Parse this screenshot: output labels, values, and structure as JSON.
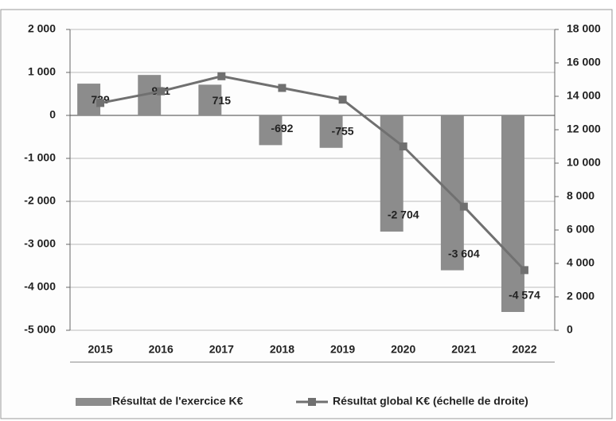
{
  "chart_data": {
    "type": "bar",
    "categories": [
      "2015",
      "2016",
      "2017",
      "2018",
      "2019",
      "2020",
      "2021",
      "2022"
    ],
    "series": [
      {
        "name": "Résultat de l'exercice K€",
        "color": "#8c8c8c",
        "type": "bar",
        "values": [
          739,
          941,
          715,
          -692,
          -755,
          -2704,
          -3604,
          -4574
        ],
        "value_labels": [
          "739",
          "941",
          "715",
          "-692",
          "-755",
          "-2 704",
          "-3 604",
          "-4 574"
        ]
      },
      {
        "name": "Résultat global K€ (échelle de droite)",
        "color": "#707070",
        "type": "line",
        "axis": "y2",
        "values": [
          13600,
          14300,
          15200,
          14500,
          13800,
          11000,
          7400,
          3600
        ]
      }
    ],
    "ylim": [
      -5000,
      2000
    ],
    "yticks": [
      {
        "value": 2000,
        "label": "2 000"
      },
      {
        "value": 1000,
        "label": "1 000"
      },
      0,
      {
        "value": -1000,
        "label": "-1 000"
      },
      {
        "value": -2000,
        "label": "-2 000"
      },
      {
        "value": -3000,
        "label": "-3 000"
      },
      {
        "value": -4000,
        "label": "-4 000"
      },
      {
        "value": -5000,
        "label": "-5 000"
      }
    ],
    "y2lim": [
      0,
      18000
    ],
    "y2ticks": [
      {
        "value": 18000,
        "label": "18 000"
      },
      {
        "value": 16000,
        "label": "16 000"
      },
      {
        "value": 14000,
        "label": "14 000"
      },
      {
        "value": 12000,
        "label": "12 000"
      },
      {
        "value": 10000,
        "label": "10 000"
      },
      {
        "value": 8000,
        "label": "8 000"
      },
      {
        "value": 6000,
        "label": "6 000"
      },
      {
        "value": 4000,
        "label": "4 000"
      },
      {
        "value": 2000,
        "label": "2 000"
      },
      0
    ],
    "grid": true
  }
}
